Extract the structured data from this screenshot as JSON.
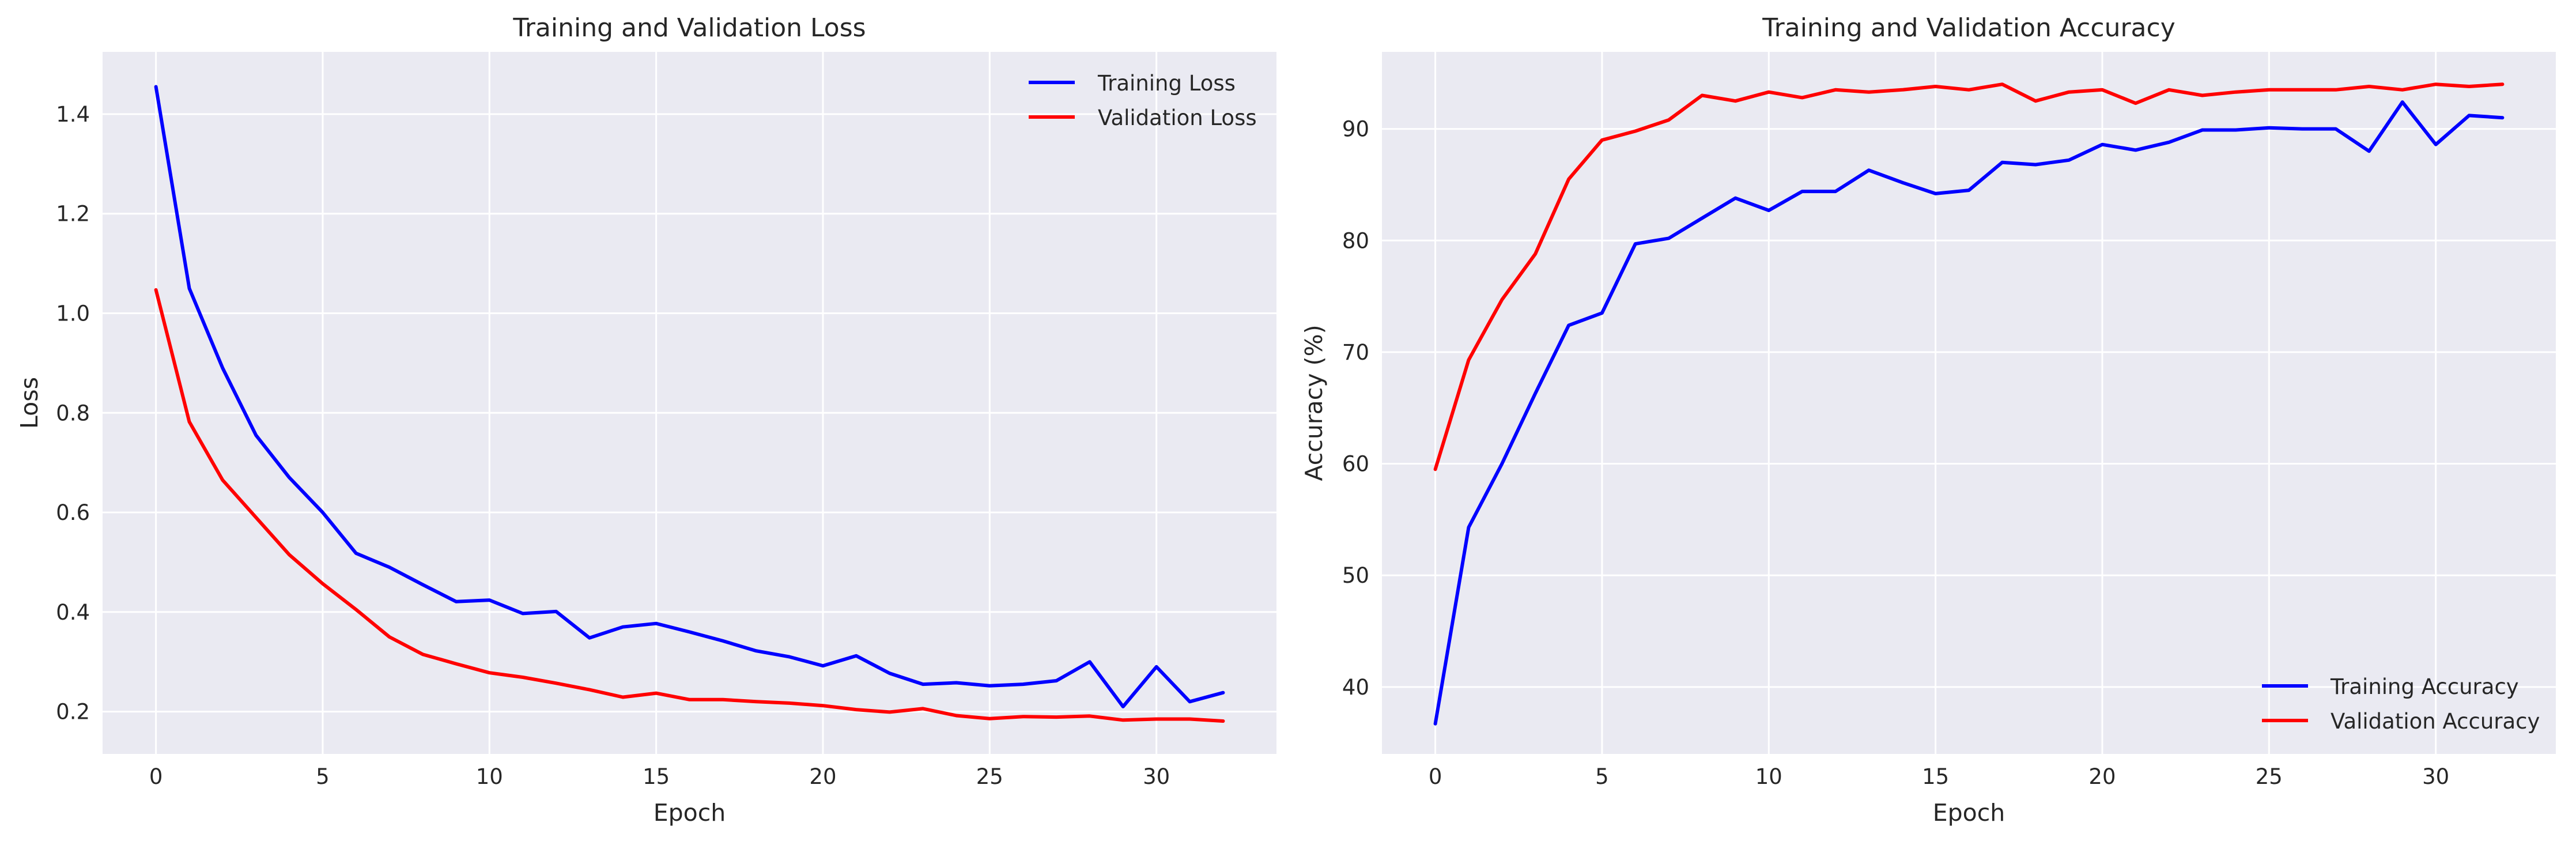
{
  "chart_data": [
    {
      "type": "line",
      "title": "Training and Validation Loss",
      "xlabel": "Epoch",
      "ylabel": "Loss",
      "xlim": [
        -1.6,
        33.6
      ],
      "ylim": [
        0.115,
        1.525
      ],
      "xticks": [
        0,
        5,
        10,
        15,
        20,
        25,
        30
      ],
      "yticks": [
        0.2,
        0.4,
        0.6,
        0.8,
        1.0,
        1.2,
        1.4
      ],
      "ytick_decimals": 1,
      "grid": true,
      "legend_position": "top-right",
      "x": [
        0,
        1,
        2,
        3,
        4,
        5,
        6,
        7,
        8,
        9,
        10,
        11,
        12,
        13,
        14,
        15,
        16,
        17,
        18,
        19,
        20,
        21,
        22,
        23,
        24,
        25,
        26,
        27,
        28,
        29,
        30,
        31,
        32
      ],
      "series": [
        {
          "name": "Training Loss",
          "color": "#0000ff",
          "values": [
            1.455,
            1.05,
            0.89,
            0.755,
            0.67,
            0.6,
            0.518,
            0.49,
            0.455,
            0.421,
            0.424,
            0.397,
            0.401,
            0.348,
            0.37,
            0.377,
            0.36,
            0.342,
            0.322,
            0.31,
            0.292,
            0.312,
            0.277,
            0.255,
            0.258,
            0.252,
            0.255,
            0.262,
            0.3,
            0.21,
            0.29,
            0.22,
            0.238
          ]
        },
        {
          "name": "Validation Loss",
          "color": "#ff0000",
          "values": [
            1.047,
            0.782,
            0.665,
            0.59,
            0.515,
            0.457,
            0.405,
            0.35,
            0.315,
            0.296,
            0.278,
            0.269,
            0.257,
            0.244,
            0.229,
            0.237,
            0.224,
            0.224,
            0.22,
            0.217,
            0.212,
            0.204,
            0.199,
            0.206,
            0.192,
            0.186,
            0.19,
            0.189,
            0.191,
            0.183,
            0.185,
            0.185,
            0.181
          ]
        }
      ]
    },
    {
      "type": "line",
      "title": "Training and Validation Accuracy",
      "xlabel": "Epoch",
      "ylabel": "Accuracy (%)",
      "xlim": [
        -1.6,
        33.6
      ],
      "ylim": [
        34.0,
        96.9
      ],
      "xticks": [
        0,
        5,
        10,
        15,
        20,
        25,
        30
      ],
      "yticks": [
        40,
        50,
        60,
        70,
        80,
        90
      ],
      "ytick_decimals": 0,
      "grid": true,
      "legend_position": "bottom-right",
      "x": [
        0,
        1,
        2,
        3,
        4,
        5,
        6,
        7,
        8,
        9,
        10,
        11,
        12,
        13,
        14,
        15,
        16,
        17,
        18,
        19,
        20,
        21,
        22,
        23,
        24,
        25,
        26,
        27,
        28,
        29,
        30,
        31,
        32
      ],
      "series": [
        {
          "name": "Training Accuracy",
          "color": "#0000ff",
          "values": [
            36.7,
            54.3,
            60.0,
            66.3,
            72.4,
            73.5,
            79.7,
            80.2,
            82.0,
            83.8,
            82.7,
            84.4,
            84.4,
            86.3,
            85.2,
            84.2,
            84.5,
            87.0,
            86.8,
            87.2,
            88.6,
            88.1,
            88.8,
            89.9,
            89.9,
            90.1,
            90.0,
            90.0,
            88.0,
            92.4,
            88.6,
            91.2,
            91.0
          ]
        },
        {
          "name": "Validation Accuracy",
          "color": "#ff0000",
          "values": [
            59.5,
            69.3,
            74.7,
            78.8,
            85.5,
            89.0,
            89.8,
            90.8,
            93.0,
            92.5,
            93.3,
            92.8,
            93.5,
            93.3,
            93.5,
            93.8,
            93.5,
            94.0,
            92.5,
            93.3,
            93.5,
            92.3,
            93.5,
            93.0,
            93.3,
            93.5,
            93.5,
            93.5,
            93.8,
            93.5,
            94.0,
            93.8,
            94.0
          ]
        }
      ]
    }
  ]
}
